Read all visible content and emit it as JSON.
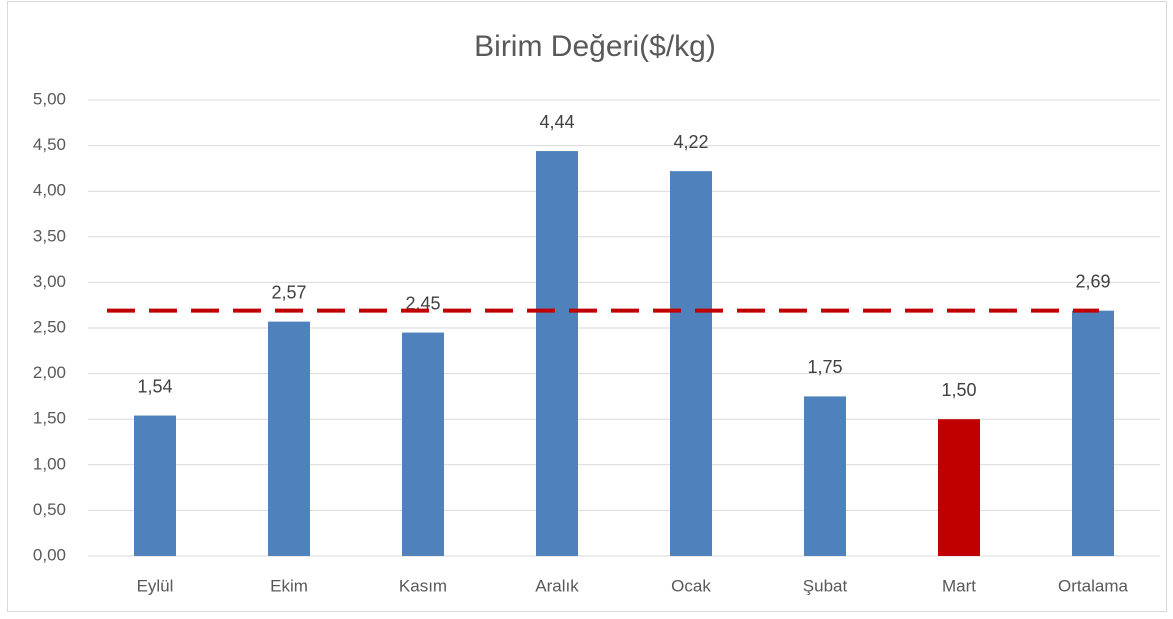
{
  "chart_data": {
    "type": "bar",
    "title": "Birim Değeri($/kg)",
    "categories": [
      "Eylül",
      "Ekim",
      "Kasım",
      "Aralık",
      "Ocak",
      "Şubat",
      "Mart",
      "Ortalama"
    ],
    "values": [
      1.54,
      2.57,
      2.45,
      4.44,
      4.22,
      1.75,
      1.5,
      2.69
    ],
    "value_labels": [
      "1,54",
      "2,57",
      "2,45",
      "4,44",
      "4,22",
      "1,75",
      "1,50",
      "2,69"
    ],
    "colors": [
      "#4f81bd",
      "#4f81bd",
      "#4f81bd",
      "#4f81bd",
      "#4f81bd",
      "#4f81bd",
      "#c00000",
      "#4f81bd"
    ],
    "ylim": [
      0,
      5
    ],
    "yticks": [
      {
        "value": 0,
        "label": "0,00"
      },
      {
        "value": 0.5,
        "label": "0,50"
      },
      {
        "value": 1,
        "label": "1,00"
      },
      {
        "value": 1.5,
        "label": "1,50"
      },
      {
        "value": 2,
        "label": "2,00"
      },
      {
        "value": 2.5,
        "label": "2,50"
      },
      {
        "value": 3,
        "label": "3,00"
      },
      {
        "value": 3.5,
        "label": "3,50"
      },
      {
        "value": 4,
        "label": "4,00"
      },
      {
        "value": 4.5,
        "label": "4,50"
      },
      {
        "value": 5,
        "label": "5,00"
      }
    ],
    "grid": true,
    "reference_line": {
      "color": "#c00000",
      "style": "dashed"
    }
  }
}
